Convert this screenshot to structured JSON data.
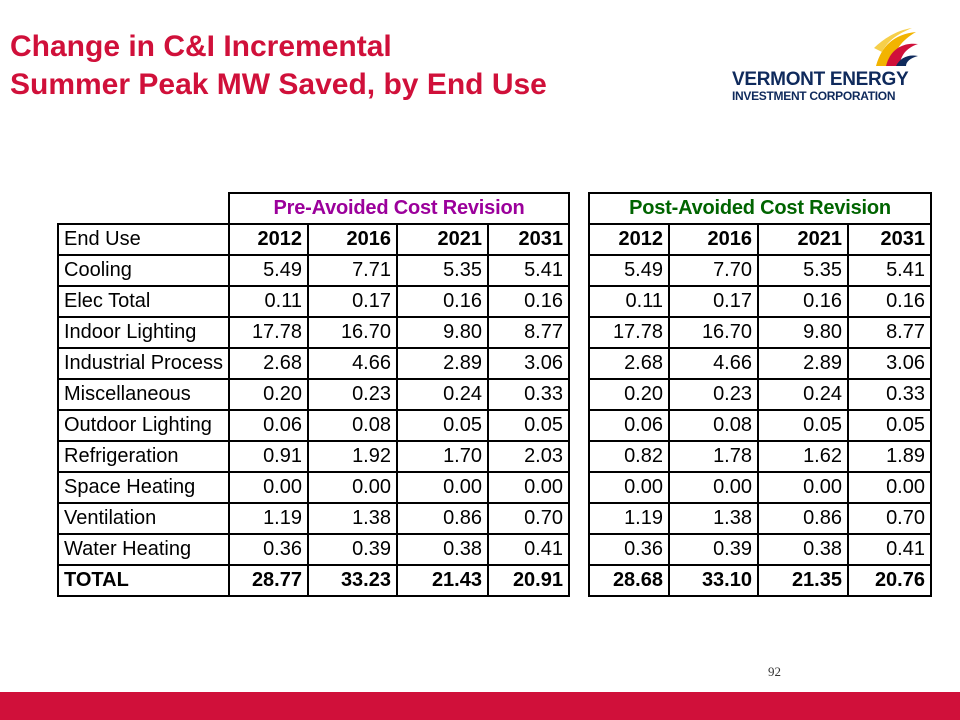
{
  "title": {
    "line1": "Change in C&I Incremental",
    "line2": "Summer Peak MW Saved, by End Use"
  },
  "logo": {
    "line1": "VERMONT ENERGY",
    "line2": "INVESTMENT CORPORATION"
  },
  "colors": {
    "title": "#d0103a",
    "pre_header": "#9b009b",
    "post_header": "#006400",
    "bar": "#d0103a",
    "logo_text": "#0f2a5c",
    "logo_yellow": "#f2b400",
    "logo_red": "#d0103a"
  },
  "pre_table": {
    "header": "Pre-Avoided Cost Revision",
    "columns": [
      "End Use",
      "2012",
      "2016",
      "2021",
      "2031"
    ],
    "rows": [
      {
        "label": "Cooling",
        "values": [
          "5.49",
          "7.71",
          "5.35",
          "5.41"
        ]
      },
      {
        "label": "Elec Total",
        "values": [
          "0.11",
          "0.17",
          "0.16",
          "0.16"
        ]
      },
      {
        "label": "Indoor Lighting",
        "values": [
          "17.78",
          "16.70",
          "9.80",
          "8.77"
        ]
      },
      {
        "label": "Industrial Process",
        "values": [
          "2.68",
          "4.66",
          "2.89",
          "3.06"
        ]
      },
      {
        "label": "Miscellaneous",
        "values": [
          "0.20",
          "0.23",
          "0.24",
          "0.33"
        ]
      },
      {
        "label": "Outdoor Lighting",
        "values": [
          "0.06",
          "0.08",
          "0.05",
          "0.05"
        ]
      },
      {
        "label": "Refrigeration",
        "values": [
          "0.91",
          "1.92",
          "1.70",
          "2.03"
        ]
      },
      {
        "label": "Space Heating",
        "values": [
          "0.00",
          "0.00",
          "0.00",
          "0.00"
        ]
      },
      {
        "label": "Ventilation",
        "values": [
          "1.19",
          "1.38",
          "0.86",
          "0.70"
        ]
      },
      {
        "label": "Water Heating",
        "values": [
          "0.36",
          "0.39",
          "0.38",
          "0.41"
        ]
      }
    ],
    "total": {
      "label": "TOTAL",
      "values": [
        "28.77",
        "33.23",
        "21.43",
        "20.91"
      ]
    }
  },
  "post_table": {
    "header": "Post-Avoided Cost Revision",
    "columns": [
      "2012",
      "2016",
      "2021",
      "2031"
    ],
    "rows": [
      [
        "5.49",
        "7.70",
        "5.35",
        "5.41"
      ],
      [
        "0.11",
        "0.17",
        "0.16",
        "0.16"
      ],
      [
        "17.78",
        "16.70",
        "9.80",
        "8.77"
      ],
      [
        "2.68",
        "4.66",
        "2.89",
        "3.06"
      ],
      [
        "0.20",
        "0.23",
        "0.24",
        "0.33"
      ],
      [
        "0.06",
        "0.08",
        "0.05",
        "0.05"
      ],
      [
        "0.82",
        "1.78",
        "1.62",
        "1.89"
      ],
      [
        "0.00",
        "0.00",
        "0.00",
        "0.00"
      ],
      [
        "1.19",
        "1.38",
        "0.86",
        "0.70"
      ],
      [
        "0.36",
        "0.39",
        "0.38",
        "0.41"
      ]
    ],
    "total": [
      "28.68",
      "33.10",
      "21.35",
      "20.76"
    ]
  },
  "page_number": "92"
}
